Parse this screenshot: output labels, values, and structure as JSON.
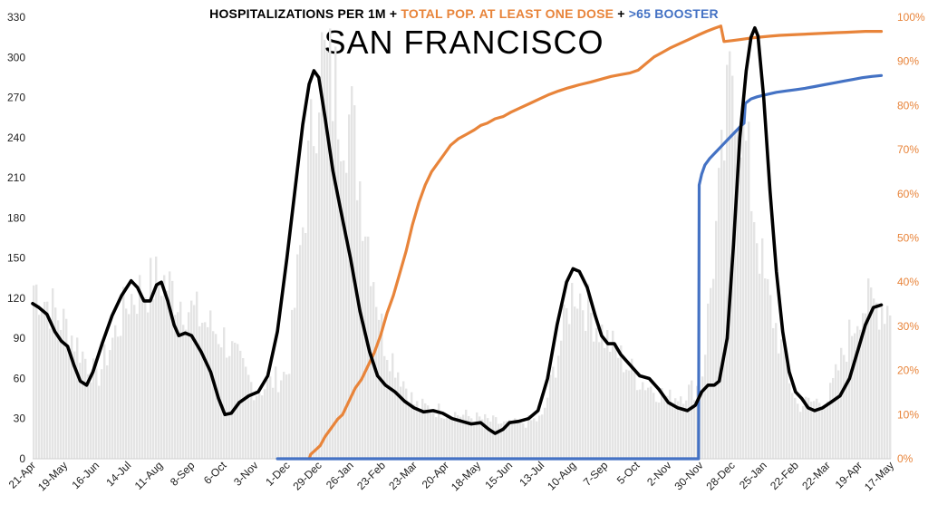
{
  "colors": {
    "background": "#ffffff",
    "hospitalizations_daily": "#e4e4e4",
    "hospitalizations_avg": "#000000",
    "vaccination": "#e8843a",
    "booster": "#4472c4",
    "right_axis_text": "#e8843a"
  },
  "title": {
    "part1": "HOSPITALIZATIONS PER 1M",
    "plus1": "+",
    "part2": "TOTAL POP. AT LEAST ONE DOSE",
    "plus2": "+",
    "part3": ">65 BOOSTER"
  },
  "subtitle": "SAN FRANCISCO",
  "chart_data": {
    "type": "area",
    "x": [
      "21-Apr",
      "19-May",
      "16-Jun",
      "14-Jul",
      "11-Aug",
      "8-Sep",
      "6-Oct",
      "3-Nov",
      "1-Dec",
      "29-Dec",
      "26-Jan",
      "23-Feb",
      "23-Mar",
      "20-Apr",
      "18-May",
      "15-Jun",
      "13-Jul",
      "10-Aug",
      "7-Sep",
      "5-Oct",
      "2-Nov",
      "30-Nov",
      "28-Dec",
      "25-Jan",
      "22-Feb",
      "22-Mar",
      "19-Apr",
      "17-May"
    ],
    "y_left": {
      "min": 0,
      "max": 330,
      "ticks": [
        0,
        30,
        60,
        90,
        120,
        150,
        180,
        210,
        240,
        270,
        300,
        330
      ]
    },
    "y_right": {
      "min": 0,
      "max": 100,
      "unit": "%",
      "ticks": [
        "0%",
        "10%",
        "20%",
        "30%",
        "40%",
        "50%",
        "60%",
        "70%",
        "80%",
        "90%",
        "100%"
      ]
    },
    "grid": false,
    "series": [
      {
        "axis": "left",
        "style": "bars",
        "values_at_ticks": [
          130,
          100,
          60,
          120,
          135,
          110,
          90,
          50,
          65,
          300,
          250,
          90,
          40,
          35,
          30,
          25,
          30,
          130,
          90,
          60,
          45,
          55,
          300,
          130,
          40,
          45,
          115
        ]
      },
      {
        "axis": "left",
        "style": "line",
        "points": [
          [
            0,
            116
          ],
          [
            0.2,
            113
          ],
          [
            0.45,
            108
          ],
          [
            0.7,
            95
          ],
          [
            0.9,
            88
          ],
          [
            1.1,
            84
          ],
          [
            1.3,
            70
          ],
          [
            1.5,
            58
          ],
          [
            1.7,
            55
          ],
          [
            1.9,
            65
          ],
          [
            2.2,
            87
          ],
          [
            2.5,
            107
          ],
          [
            2.8,
            122
          ],
          [
            3.1,
            133
          ],
          [
            3.3,
            128
          ],
          [
            3.5,
            118
          ],
          [
            3.7,
            118
          ],
          [
            3.9,
            130
          ],
          [
            4.05,
            132
          ],
          [
            4.25,
            118
          ],
          [
            4.45,
            100
          ],
          [
            4.6,
            92
          ],
          [
            4.8,
            94
          ],
          [
            5.0,
            92
          ],
          [
            5.3,
            80
          ],
          [
            5.6,
            65
          ],
          [
            5.85,
            45
          ],
          [
            6.05,
            33
          ],
          [
            6.25,
            34
          ],
          [
            6.5,
            42
          ],
          [
            6.8,
            47
          ],
          [
            7.1,
            50
          ],
          [
            7.4,
            62
          ],
          [
            7.7,
            95
          ],
          [
            8.0,
            150
          ],
          [
            8.3,
            210
          ],
          [
            8.5,
            250
          ],
          [
            8.7,
            280
          ],
          [
            8.85,
            290
          ],
          [
            9.0,
            285
          ],
          [
            9.2,
            255
          ],
          [
            9.45,
            215
          ],
          [
            9.7,
            185
          ],
          [
            10.0,
            150
          ],
          [
            10.3,
            110
          ],
          [
            10.6,
            80
          ],
          [
            10.85,
            62
          ],
          [
            11.1,
            55
          ],
          [
            11.4,
            50
          ],
          [
            11.7,
            43
          ],
          [
            12.0,
            38
          ],
          [
            12.3,
            35
          ],
          [
            12.6,
            36
          ],
          [
            12.9,
            34
          ],
          [
            13.2,
            30
          ],
          [
            13.5,
            28
          ],
          [
            13.8,
            26
          ],
          [
            14.1,
            27
          ],
          [
            14.35,
            22
          ],
          [
            14.55,
            19
          ],
          [
            14.8,
            22
          ],
          [
            15.0,
            27
          ],
          [
            15.3,
            28
          ],
          [
            15.6,
            30
          ],
          [
            15.9,
            36
          ],
          [
            16.2,
            60
          ],
          [
            16.5,
            100
          ],
          [
            16.8,
            132
          ],
          [
            17.0,
            142
          ],
          [
            17.2,
            140
          ],
          [
            17.45,
            128
          ],
          [
            17.7,
            107
          ],
          [
            17.9,
            92
          ],
          [
            18.1,
            86
          ],
          [
            18.3,
            86
          ],
          [
            18.5,
            78
          ],
          [
            18.8,
            70
          ],
          [
            19.1,
            62
          ],
          [
            19.4,
            60
          ],
          [
            19.7,
            52
          ],
          [
            20.0,
            42
          ],
          [
            20.3,
            38
          ],
          [
            20.6,
            36
          ],
          [
            20.85,
            40
          ],
          [
            21.05,
            50
          ],
          [
            21.25,
            55
          ],
          [
            21.45,
            55
          ],
          [
            21.6,
            58
          ],
          [
            21.85,
            90
          ],
          [
            22.05,
            160
          ],
          [
            22.25,
            240
          ],
          [
            22.45,
            290
          ],
          [
            22.6,
            315
          ],
          [
            22.72,
            322
          ],
          [
            22.82,
            316
          ],
          [
            23.0,
            270
          ],
          [
            23.2,
            200
          ],
          [
            23.4,
            140
          ],
          [
            23.6,
            95
          ],
          [
            23.8,
            65
          ],
          [
            24.0,
            50
          ],
          [
            24.2,
            45
          ],
          [
            24.4,
            38
          ],
          [
            24.6,
            36
          ],
          [
            24.85,
            38
          ],
          [
            25.1,
            42
          ],
          [
            25.4,
            47
          ],
          [
            25.7,
            60
          ],
          [
            25.95,
            80
          ],
          [
            26.2,
            100
          ],
          [
            26.45,
            113
          ],
          [
            26.7,
            115
          ]
        ]
      },
      {
        "axis": "right",
        "style": "line",
        "points": [
          [
            8.7,
            0
          ],
          [
            8.75,
            1
          ],
          [
            8.9,
            2
          ],
          [
            9.05,
            3
          ],
          [
            9.2,
            5
          ],
          [
            9.4,
            7
          ],
          [
            9.6,
            9
          ],
          [
            9.75,
            10
          ],
          [
            9.95,
            13
          ],
          [
            10.15,
            16
          ],
          [
            10.35,
            18
          ],
          [
            10.55,
            21
          ],
          [
            10.75,
            24
          ],
          [
            10.95,
            28
          ],
          [
            11.15,
            33
          ],
          [
            11.35,
            37
          ],
          [
            11.55,
            42
          ],
          [
            11.75,
            47
          ],
          [
            11.95,
            53
          ],
          [
            12.15,
            58
          ],
          [
            12.35,
            62
          ],
          [
            12.55,
            65
          ],
          [
            12.75,
            67
          ],
          [
            12.95,
            69
          ],
          [
            13.15,
            71
          ],
          [
            13.4,
            72.5
          ],
          [
            13.65,
            73.5
          ],
          [
            13.9,
            74.5
          ],
          [
            14.1,
            75.5
          ],
          [
            14.3,
            76
          ],
          [
            14.55,
            77
          ],
          [
            14.8,
            77.5
          ],
          [
            15.05,
            78.5
          ],
          [
            15.35,
            79.5
          ],
          [
            15.65,
            80.5
          ],
          [
            15.95,
            81.5
          ],
          [
            16.25,
            82.5
          ],
          [
            16.55,
            83.3
          ],
          [
            16.85,
            84
          ],
          [
            17.2,
            84.7
          ],
          [
            17.55,
            85.3
          ],
          [
            17.9,
            86
          ],
          [
            18.2,
            86.6
          ],
          [
            18.5,
            87
          ],
          [
            18.8,
            87.4
          ],
          [
            19.05,
            88
          ],
          [
            19.3,
            89.5
          ],
          [
            19.55,
            91
          ],
          [
            19.8,
            92
          ],
          [
            20.05,
            93
          ],
          [
            20.35,
            94
          ],
          [
            20.65,
            95
          ],
          [
            20.95,
            96
          ],
          [
            21.2,
            96.8
          ],
          [
            21.45,
            97.5
          ],
          [
            21.65,
            98
          ],
          [
            21.75,
            94.5
          ],
          [
            22.0,
            94.7
          ],
          [
            22.3,
            95
          ],
          [
            22.6,
            95.3
          ],
          [
            22.9,
            95.5
          ],
          [
            23.2,
            95.7
          ],
          [
            23.5,
            95.9
          ],
          [
            23.8,
            96
          ],
          [
            24.1,
            96.1
          ],
          [
            24.4,
            96.2
          ],
          [
            24.7,
            96.3
          ],
          [
            25.0,
            96.4
          ],
          [
            25.3,
            96.5
          ],
          [
            25.6,
            96.6
          ],
          [
            25.9,
            96.7
          ],
          [
            26.2,
            96.8
          ],
          [
            26.5,
            96.8
          ],
          [
            26.7,
            96.8
          ]
        ]
      },
      {
        "axis": "right",
        "style": "line",
        "points": [
          [
            7.7,
            0
          ],
          [
            20.95,
            0
          ],
          [
            20.97,
            62
          ],
          [
            21.05,
            64.5
          ],
          [
            21.15,
            66.5
          ],
          [
            21.3,
            68
          ],
          [
            21.5,
            69.5
          ],
          [
            21.7,
            71
          ],
          [
            21.9,
            72.5
          ],
          [
            22.1,
            74
          ],
          [
            22.3,
            75.5
          ],
          [
            22.38,
            76
          ],
          [
            22.42,
            80.5
          ],
          [
            22.6,
            81.5
          ],
          [
            22.8,
            82
          ],
          [
            23.1,
            82.5
          ],
          [
            23.4,
            83
          ],
          [
            23.7,
            83.3
          ],
          [
            24.0,
            83.6
          ],
          [
            24.3,
            83.9
          ],
          [
            24.6,
            84.3
          ],
          [
            24.9,
            84.7
          ],
          [
            25.2,
            85.1
          ],
          [
            25.5,
            85.5
          ],
          [
            25.8,
            85.9
          ],
          [
            26.1,
            86.3
          ],
          [
            26.4,
            86.6
          ],
          [
            26.7,
            86.8
          ]
        ]
      }
    ]
  }
}
